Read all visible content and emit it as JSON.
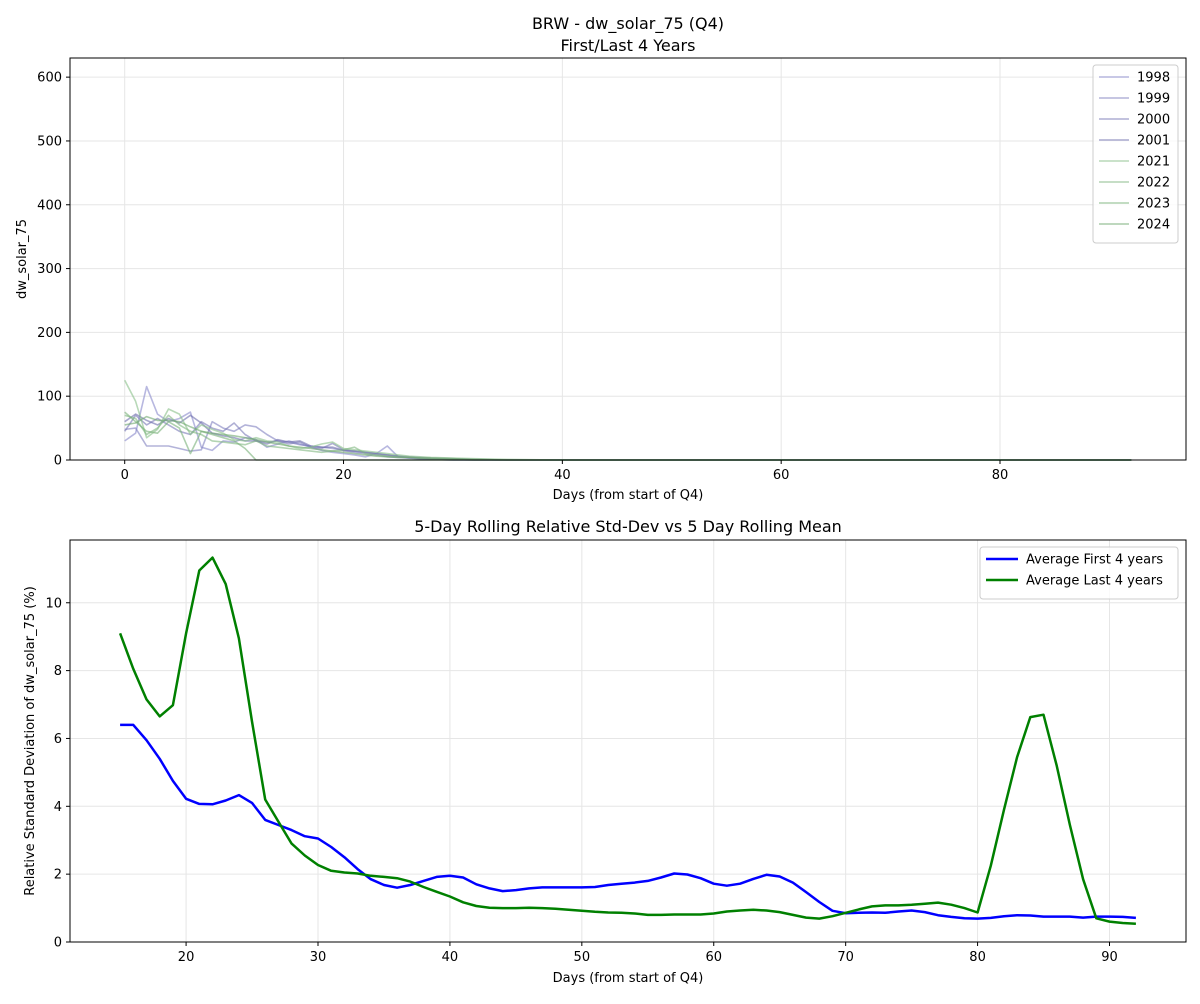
{
  "chart_data": [
    {
      "type": "line",
      "title": "BRW - dw_solar_75 (Q4)",
      "subtitle": "First/Last 4 Years",
      "xlabel": "Days (from start of Q4)",
      "ylabel": "dw_solar_75",
      "xlim": [
        -5,
        97
      ],
      "ylim": [
        0,
        630
      ],
      "xticks": [
        0,
        20,
        40,
        60,
        80
      ],
      "yticks": [
        0,
        100,
        200,
        300,
        400,
        500,
        600
      ],
      "grid": true,
      "legend_position": "top-right",
      "series": [
        {
          "name": "1998",
          "color": "#8888cc",
          "x": [
            0,
            1,
            2,
            3,
            4,
            5,
            6,
            7,
            8,
            9,
            10,
            11,
            12,
            13,
            14,
            15,
            16,
            17,
            18,
            19,
            20,
            21,
            22,
            23,
            24,
            25,
            26,
            27,
            28,
            30,
            32,
            35,
            40,
            50,
            60,
            70,
            80,
            90,
            92
          ],
          "values": [
            30,
            42,
            115,
            72,
            60,
            65,
            75,
            20,
            15,
            30,
            28,
            35,
            32,
            20,
            25,
            30,
            25,
            20,
            15,
            12,
            10,
            8,
            5,
            10,
            22,
            5,
            3,
            2,
            1,
            0,
            0,
            0,
            0,
            0,
            0,
            0,
            0,
            0,
            0
          ]
        },
        {
          "name": "1999",
          "color": "#8080c0",
          "x": [
            0,
            1,
            2,
            3,
            4,
            5,
            6,
            7,
            8,
            9,
            10,
            11,
            12,
            13,
            14,
            15,
            16,
            17,
            18,
            19,
            20,
            21,
            22,
            23,
            24,
            25,
            26,
            27,
            28,
            30,
            32,
            35,
            40,
            50,
            60,
            70,
            80,
            90,
            92
          ],
          "values": [
            48,
            50,
            22,
            22,
            22,
            18,
            14,
            16,
            60,
            50,
            45,
            55,
            52,
            40,
            30,
            28,
            24,
            22,
            20,
            18,
            15,
            12,
            10,
            8,
            5,
            4,
            3,
            2,
            1,
            0,
            0,
            0,
            0,
            0,
            0,
            0,
            0,
            0,
            0
          ]
        },
        {
          "name": "2000",
          "color": "#7a7ab8",
          "x": [
            0,
            1,
            2,
            3,
            4,
            5,
            6,
            7,
            8,
            9,
            10,
            11,
            12,
            13,
            14,
            15,
            16,
            17,
            18,
            19,
            20,
            21,
            22,
            23,
            24,
            25,
            26,
            27,
            28,
            30,
            32,
            35,
            40,
            50,
            60,
            70,
            80,
            90,
            92
          ],
          "values": [
            45,
            70,
            55,
            65,
            55,
            45,
            40,
            60,
            50,
            45,
            58,
            40,
            30,
            28,
            30,
            25,
            28,
            20,
            18,
            26,
            16,
            14,
            12,
            10,
            8,
            6,
            5,
            4,
            3,
            2,
            1,
            0,
            0,
            0,
            0,
            0,
            0,
            0,
            0
          ]
        },
        {
          "name": "2001",
          "color": "#6e6eae",
          "x": [
            0,
            1,
            2,
            3,
            4,
            5,
            6,
            7,
            8,
            9,
            10,
            11,
            12,
            13,
            14,
            15,
            16,
            17,
            18,
            19,
            20,
            21,
            22,
            23,
            24,
            25,
            26,
            27,
            28,
            30,
            32,
            35,
            40,
            50,
            60,
            70,
            80,
            90,
            92
          ],
          "values": [
            60,
            72,
            62,
            55,
            65,
            58,
            70,
            58,
            42,
            38,
            35,
            30,
            30,
            25,
            32,
            28,
            30,
            22,
            20,
            20,
            15,
            14,
            12,
            10,
            8,
            6,
            4,
            3,
            2,
            1,
            0,
            0,
            0,
            0,
            0,
            0,
            0,
            0,
            0
          ]
        },
        {
          "name": "2021",
          "color": "#88c088",
          "x": [
            0,
            1,
            2,
            3,
            4,
            5,
            6,
            7,
            8,
            9,
            10,
            11,
            12,
            13,
            14,
            15,
            16,
            17,
            18,
            19,
            20,
            21,
            22,
            23,
            24,
            25,
            26,
            27,
            28,
            30,
            32,
            35,
            40,
            50,
            60,
            70,
            80,
            90,
            92
          ],
          "values": [
            125,
            92,
            35,
            48,
            80,
            72,
            40,
            55,
            48,
            42,
            32,
            30,
            35,
            30,
            28,
            22,
            18,
            20,
            25,
            28,
            18,
            16,
            14,
            12,
            10,
            8,
            6,
            5,
            4,
            3,
            2,
            1,
            0,
            0,
            0,
            0,
            0,
            0,
            0
          ]
        },
        {
          "name": "2022",
          "color": "#80b880",
          "x": [
            0,
            1,
            2,
            3,
            4,
            5,
            6,
            7,
            8,
            9,
            10,
            11,
            12,
            13,
            14,
            15,
            16,
            17,
            18,
            19,
            20,
            21,
            22,
            23,
            24,
            25,
            26,
            27,
            28,
            30,
            32,
            35,
            40,
            50,
            60,
            70,
            80,
            90,
            92
          ],
          "values": [
            70,
            65,
            40,
            50,
            70,
            55,
            45,
            40,
            30,
            28,
            26,
            24,
            30,
            22,
            20,
            18,
            16,
            14,
            12,
            14,
            16,
            20,
            10,
            8,
            6,
            5,
            4,
            3,
            2,
            1,
            0,
            0,
            0,
            0,
            0,
            0,
            0,
            0,
            0
          ]
        },
        {
          "name": "2023",
          "color": "#78b078",
          "x": [
            0,
            1,
            2,
            3,
            4,
            5,
            6,
            7,
            8,
            9,
            10,
            11,
            12,
            13,
            14,
            15,
            16,
            17,
            18,
            19,
            20,
            21,
            22,
            23,
            24,
            25,
            26,
            27,
            28,
            30,
            32,
            35,
            40,
            50,
            60,
            70,
            80,
            90,
            92
          ],
          "values": [
            75,
            60,
            45,
            42,
            60,
            50,
            10,
            45,
            40,
            35,
            30,
            18,
            0,
            0,
            0,
            0,
            0,
            0,
            0,
            0,
            0,
            0,
            0,
            0,
            0,
            0,
            0,
            0,
            0,
            0,
            0,
            0,
            0,
            0,
            0,
            0,
            0,
            0,
            0
          ]
        },
        {
          "name": "2024",
          "color": "#70a870",
          "x": [
            0,
            1,
            2,
            3,
            4,
            5,
            6,
            7,
            8,
            9,
            10,
            11,
            12,
            13,
            14,
            15,
            16,
            17,
            18,
            19,
            20,
            21,
            22,
            23,
            24,
            25,
            26,
            27,
            28,
            30,
            32,
            35,
            40,
            50,
            60,
            70,
            80,
            90,
            92
          ],
          "values": [
            55,
            58,
            68,
            62,
            62,
            60,
            52,
            45,
            42,
            40,
            38,
            35,
            32,
            28,
            25,
            22,
            20,
            18,
            16,
            14,
            12,
            10,
            8,
            6,
            5,
            4,
            4,
            3,
            3,
            2,
            1,
            0,
            0,
            0,
            0,
            0,
            0,
            0,
            0
          ]
        }
      ]
    },
    {
      "type": "line",
      "title": "5-Day Rolling Relative Std-Dev vs 5 Day Rolling Mean",
      "xlabel": "Days (from start of Q4)",
      "ylabel": "Relative Standard Deviation of dw_solar_75 (%)",
      "xlim": [
        11.2,
        95.8
      ],
      "ylim": [
        0,
        11.85
      ],
      "xticks": [
        20,
        30,
        40,
        50,
        60,
        70,
        80,
        90
      ],
      "yticks": [
        0,
        2,
        4,
        6,
        8,
        10
      ],
      "grid": true,
      "legend_position": "top-right",
      "series": [
        {
          "name": "Average First 4 years",
          "color": "#0000ff",
          "x": [
            15,
            16,
            17,
            18,
            19,
            20,
            21,
            22,
            23,
            24,
            25,
            26,
            27,
            28,
            29,
            30,
            31,
            32,
            33,
            34,
            35,
            36,
            37,
            38,
            39,
            40,
            41,
            42,
            43,
            44,
            45,
            46,
            47,
            48,
            49,
            50,
            51,
            52,
            53,
            54,
            55,
            56,
            57,
            58,
            59,
            60,
            61,
            62,
            63,
            64,
            65,
            66,
            67,
            68,
            69,
            70,
            71,
            72,
            73,
            74,
            75,
            76,
            77,
            78,
            79,
            80,
            81,
            82,
            83,
            84,
            85,
            86,
            87,
            88,
            89,
            90,
            91,
            92
          ],
          "values": [
            6.4,
            6.4,
            5.95,
            5.4,
            4.75,
            4.22,
            4.07,
            4.06,
            4.17,
            4.33,
            4.1,
            3.6,
            3.45,
            3.3,
            3.12,
            3.05,
            2.8,
            2.5,
            2.15,
            1.85,
            1.68,
            1.6,
            1.68,
            1.8,
            1.92,
            1.95,
            1.9,
            1.7,
            1.58,
            1.5,
            1.53,
            1.58,
            1.61,
            1.61,
            1.61,
            1.61,
            1.62,
            1.68,
            1.72,
            1.75,
            1.8,
            1.9,
            2.02,
            1.99,
            1.88,
            1.72,
            1.66,
            1.72,
            1.86,
            1.98,
            1.93,
            1.75,
            1.47,
            1.18,
            0.92,
            0.85,
            0.86,
            0.87,
            0.86,
            0.9,
            0.93,
            0.88,
            0.79,
            0.74,
            0.7,
            0.69,
            0.71,
            0.76,
            0.79,
            0.78,
            0.75,
            0.75,
            0.75,
            0.72,
            0.75,
            0.75,
            0.74,
            0.71
          ]
        },
        {
          "name": "Average Last 4 years",
          "color": "#008000",
          "x": [
            15,
            16,
            17,
            18,
            19,
            20,
            21,
            22,
            23,
            24,
            25,
            26,
            27,
            28,
            29,
            30,
            31,
            32,
            33,
            34,
            35,
            36,
            37,
            38,
            39,
            40,
            41,
            42,
            43,
            44,
            45,
            46,
            47,
            48,
            49,
            50,
            51,
            52,
            53,
            54,
            55,
            56,
            57,
            58,
            59,
            60,
            61,
            62,
            63,
            64,
            65,
            66,
            67,
            68,
            69,
            70,
            71,
            72,
            73,
            74,
            75,
            76,
            77,
            78,
            79,
            80,
            81,
            82,
            83,
            84,
            85,
            86,
            87,
            88,
            89,
            90,
            91,
            92
          ],
          "values": [
            9.1,
            8.05,
            7.15,
            6.65,
            6.98,
            9.1,
            10.95,
            11.33,
            10.55,
            8.95,
            6.5,
            4.2,
            3.55,
            2.9,
            2.55,
            2.27,
            2.1,
            2.05,
            2.02,
            1.95,
            1.92,
            1.88,
            1.78,
            1.62,
            1.48,
            1.34,
            1.17,
            1.06,
            1.01,
            1.0,
            1.0,
            1.01,
            1.0,
            0.98,
            0.95,
            0.92,
            0.89,
            0.87,
            0.86,
            0.84,
            0.8,
            0.8,
            0.81,
            0.81,
            0.81,
            0.84,
            0.9,
            0.93,
            0.95,
            0.93,
            0.88,
            0.8,
            0.72,
            0.69,
            0.76,
            0.86,
            0.96,
            1.05,
            1.08,
            1.08,
            1.1,
            1.13,
            1.16,
            1.1,
            1.0,
            0.87,
            2.25,
            3.9,
            5.45,
            6.63,
            6.7,
            5.2,
            3.45,
            1.85,
            0.7,
            0.6,
            0.56,
            0.54
          ]
        }
      ]
    }
  ]
}
